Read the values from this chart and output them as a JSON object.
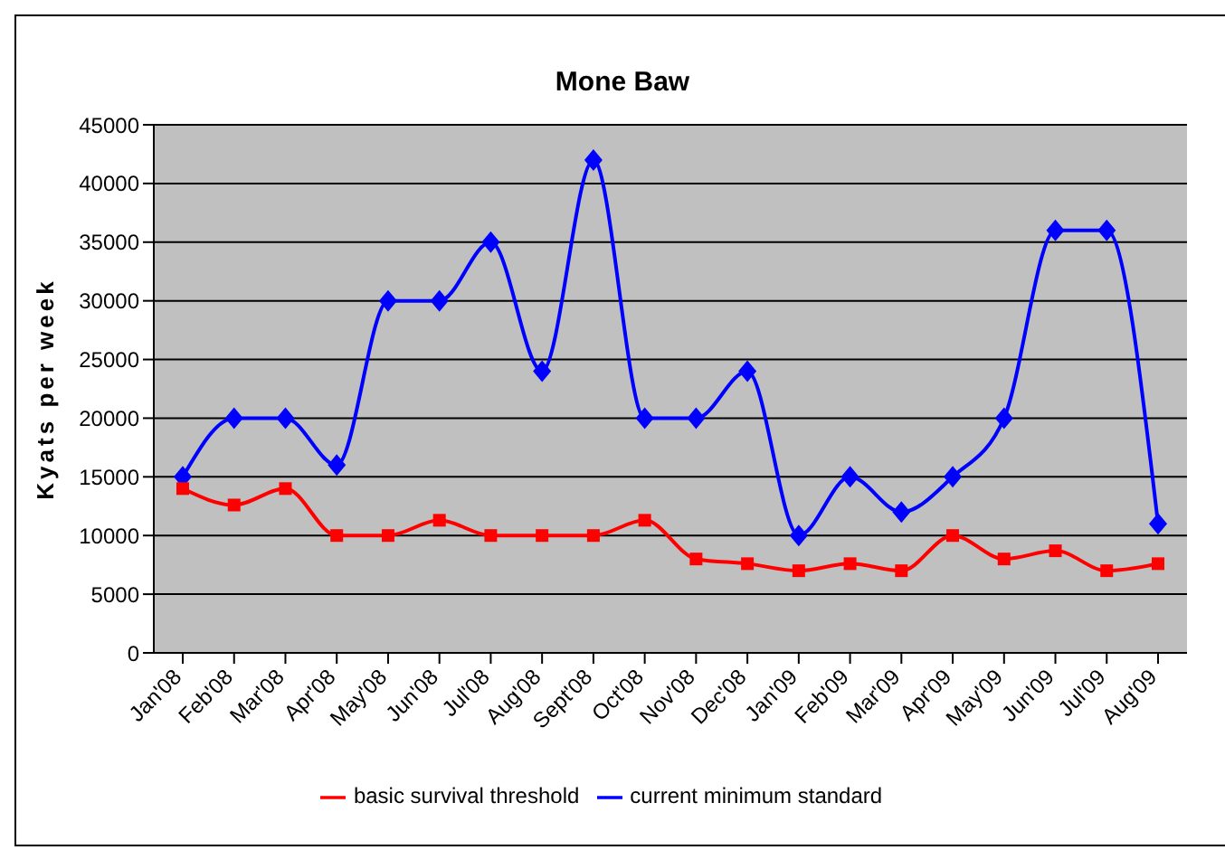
{
  "chart_data": {
    "type": "line",
    "title": "Mone Baw",
    "ylabel": "Kyats per week",
    "categories": [
      "Jan'08",
      "Feb'08",
      "Mar'08",
      "Apr'08",
      "May'08",
      "Jun'08",
      "Jul'08",
      "Aug'08",
      "Sept'08",
      "Oct'08",
      "Nov'08",
      "Dec'08",
      "Jan'09",
      "Feb'09",
      "Mar'09",
      "Apr'09",
      "May'09",
      "Jun'09",
      "Jul'09",
      "Aug'09"
    ],
    "series": [
      {
        "name": "current minimum standard",
        "color": "#0000ff",
        "marker": "diamond",
        "values": [
          15000,
          20000,
          20000,
          16000,
          30000,
          30000,
          35000,
          24000,
          42000,
          20000,
          20000,
          24000,
          10000,
          15000,
          12000,
          15000,
          20000,
          36000,
          36000,
          11000
        ]
      },
      {
        "name": "basic survival threshold",
        "color": "#ff0000",
        "marker": "square",
        "values": [
          14000,
          12600,
          14000,
          10000,
          10000,
          11300,
          10000,
          10000,
          10000,
          11300,
          8000,
          7600,
          7000,
          7600,
          7000,
          10000,
          8000,
          8700,
          7000,
          7600
        ]
      }
    ],
    "ylim": [
      0,
      45000
    ],
    "yticks": [
      0,
      5000,
      10000,
      15000,
      20000,
      25000,
      30000,
      35000,
      40000,
      45000
    ],
    "grid": "y",
    "legend": "bottom",
    "line_style": "solid"
  }
}
